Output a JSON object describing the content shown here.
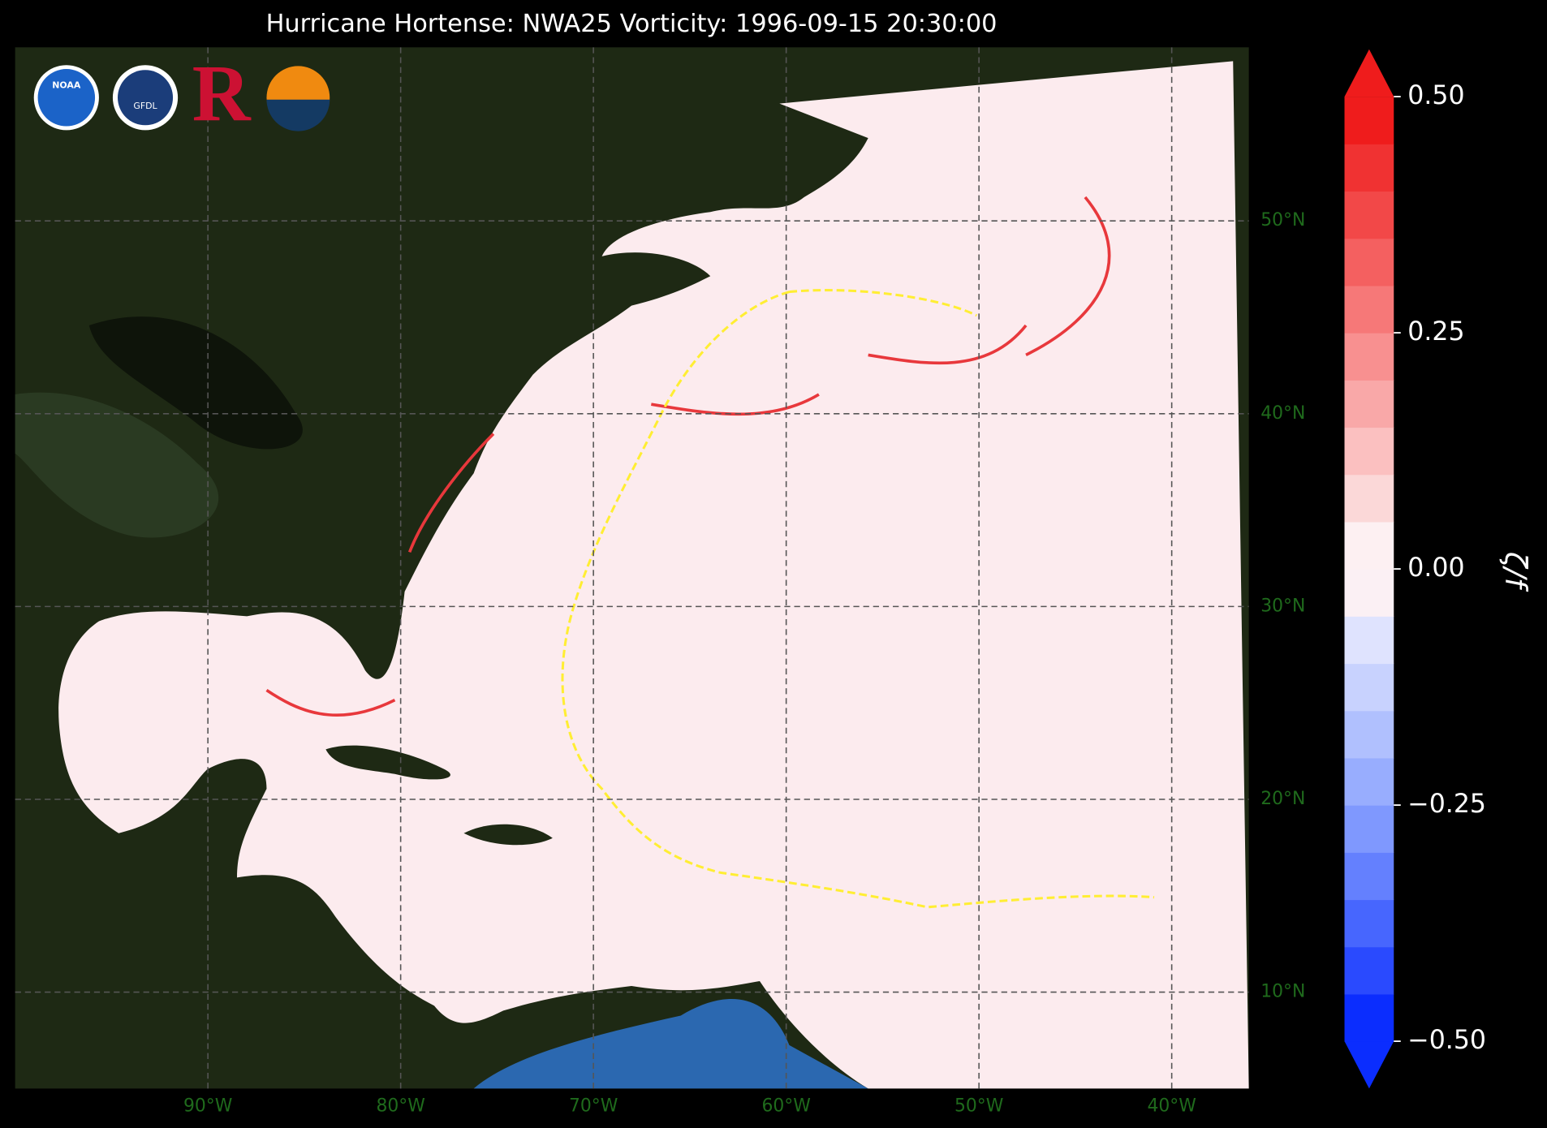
{
  "map": {
    "title": "Hurricane Hortense: NWA25 Vorticity: 1996-09-15 20:30:00",
    "logos": [
      "NOAA",
      "GFDL",
      "R"
    ],
    "xlim": [
      -100,
      -36
    ],
    "ylim": [
      5,
      59
    ],
    "grid": true,
    "xticks": [
      {
        "value": -90,
        "label": "90°W"
      },
      {
        "value": -80,
        "label": "80°W"
      },
      {
        "value": -70,
        "label": "70°W"
      },
      {
        "value": -60,
        "label": "60°W"
      },
      {
        "value": -50,
        "label": "50°W"
      },
      {
        "value": -40,
        "label": "40°W"
      }
    ],
    "yticks": [
      {
        "value": 50,
        "label": "50°N"
      },
      {
        "value": 40,
        "label": "40°N"
      },
      {
        "value": 30,
        "label": "30°N"
      },
      {
        "value": 20,
        "label": "20°N"
      },
      {
        "value": 10,
        "label": "10°N"
      }
    ],
    "colorbar": {
      "label": "ζ/f",
      "clim": [
        -0.5,
        0.5
      ],
      "extend": "both",
      "ticks": [
        {
          "value": 0.5,
          "label": "0.50"
        },
        {
          "value": 0.25,
          "label": "0.25"
        },
        {
          "value": 0,
          "label": "0.00"
        },
        {
          "value": -0.25,
          "label": "−0.25"
        },
        {
          "value": -0.5,
          "label": "−0.50"
        }
      ],
      "colors": [
        "#0b2dfe",
        "#2a4afe",
        "#4766fe",
        "#6480fe",
        "#7f98fe",
        "#98adfe",
        "#b0c0fe",
        "#c8d2fe",
        "#dfe3fe",
        "#fbf0f4",
        "#fdf0f2",
        "#fbd8d8",
        "#fbc0c0",
        "#f9a8a8",
        "#f89090",
        "#f67878",
        "#f46060",
        "#f24848",
        "#f03232",
        "#ef1c1c"
      ]
    }
  }
}
